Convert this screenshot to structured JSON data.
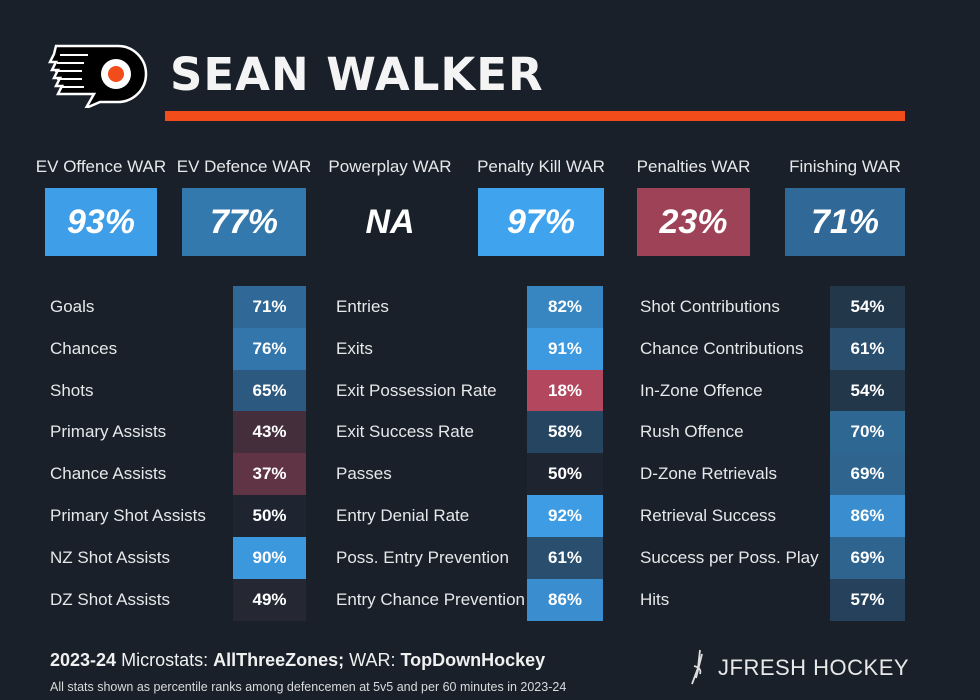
{
  "header": {
    "player_name": "SEAN WALKER",
    "team_logo": "philadelphia-flyers-logo",
    "accent": "#f24c1a"
  },
  "war": [
    {
      "label": "EV Offence WAR",
      "value": "93%",
      "pct": 93
    },
    {
      "label": "EV Defence WAR",
      "value": "77%",
      "pct": 77
    },
    {
      "label": "Powerplay WAR",
      "value": "NA",
      "pct": null
    },
    {
      "label": "Penalty Kill WAR",
      "value": "97%",
      "pct": 97
    },
    {
      "label": "Penalties WAR",
      "value": "23%",
      "pct": 23
    },
    {
      "label": "Finishing WAR",
      "value": "71%",
      "pct": 71
    }
  ],
  "columns": [
    [
      {
        "label": "Goals",
        "value": "71%",
        "pct": 71
      },
      {
        "label": "Chances",
        "value": "76%",
        "pct": 76
      },
      {
        "label": "Shots",
        "value": "65%",
        "pct": 65
      },
      {
        "label": "Primary Assists",
        "value": "43%",
        "pct": 43
      },
      {
        "label": "Chance Assists",
        "value": "37%",
        "pct": 37
      },
      {
        "label": "Primary Shot Assists",
        "value": "50%",
        "pct": 50
      },
      {
        "label": "NZ Shot Assists",
        "value": "90%",
        "pct": 90
      },
      {
        "label": "DZ Shot Assists",
        "value": "49%",
        "pct": 49
      }
    ],
    [
      {
        "label": "Entries",
        "value": "82%",
        "pct": 82
      },
      {
        "label": "Exits",
        "value": "91%",
        "pct": 91
      },
      {
        "label": "Exit Possession Rate",
        "value": "18%",
        "pct": 18
      },
      {
        "label": "Exit Success Rate",
        "value": "58%",
        "pct": 58
      },
      {
        "label": "Passes",
        "value": "50%",
        "pct": 50
      },
      {
        "label": "Entry Denial Rate",
        "value": "92%",
        "pct": 92
      },
      {
        "label": "Poss. Entry Prevention",
        "value": "61%",
        "pct": 61
      },
      {
        "label": "Entry Chance Prevention",
        "value": "86%",
        "pct": 86
      }
    ],
    [
      {
        "label": "Shot Contributions",
        "value": "54%",
        "pct": 54
      },
      {
        "label": "Chance Contributions",
        "value": "61%",
        "pct": 61
      },
      {
        "label": "In-Zone Offence",
        "value": "54%",
        "pct": 54
      },
      {
        "label": "Rush Offence",
        "value": "70%",
        "pct": 70
      },
      {
        "label": "D-Zone Retrievals",
        "value": "69%",
        "pct": 69
      },
      {
        "label": "Retrieval Success",
        "value": "86%",
        "pct": 86
      },
      {
        "label": "Success per Poss. Play",
        "value": "69%",
        "pct": 69
      },
      {
        "label": "Hits",
        "value": "57%",
        "pct": 57
      }
    ]
  ],
  "colors": {
    "high": "#3fa3ee",
    "mid": "#1e2530",
    "low": "#c04a62"
  },
  "footer": {
    "season": "2023-24",
    "micro_label": "Microstats:",
    "micro_source": "AllThreeZones;",
    "war_label": "WAR:",
    "war_source": "TopDownHockey",
    "note": "All stats shown as percentile ranks among defencemen at 5v5 and per 60 minutes in 2023-24",
    "brand": "JFRESH HOCKEY"
  }
}
